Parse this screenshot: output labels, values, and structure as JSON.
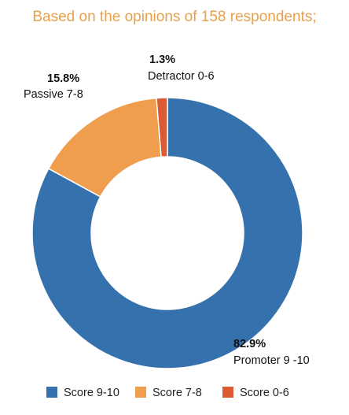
{
  "title": "Based on the opinions of 158 respondents;",
  "colors": {
    "title": "#e9a04a",
    "background": "#ffffff"
  },
  "chart_data": {
    "type": "pie",
    "style": "donut",
    "legend_position": "bottom",
    "slices": [
      {
        "name": "Score 9-10",
        "label": "Promoter 9 -10",
        "value": 82.9,
        "value_label": "82.9%",
        "color": "#3471ad"
      },
      {
        "name": "Score 7-8",
        "label": "Passive 7-8",
        "value": 15.8,
        "value_label": "15.8%",
        "color": "#ee9e4c"
      },
      {
        "name": "Score 0-6",
        "label": "Detractor 0-6",
        "value": 1.3,
        "value_label": "1.3%",
        "color": "#dd5a33"
      }
    ]
  }
}
